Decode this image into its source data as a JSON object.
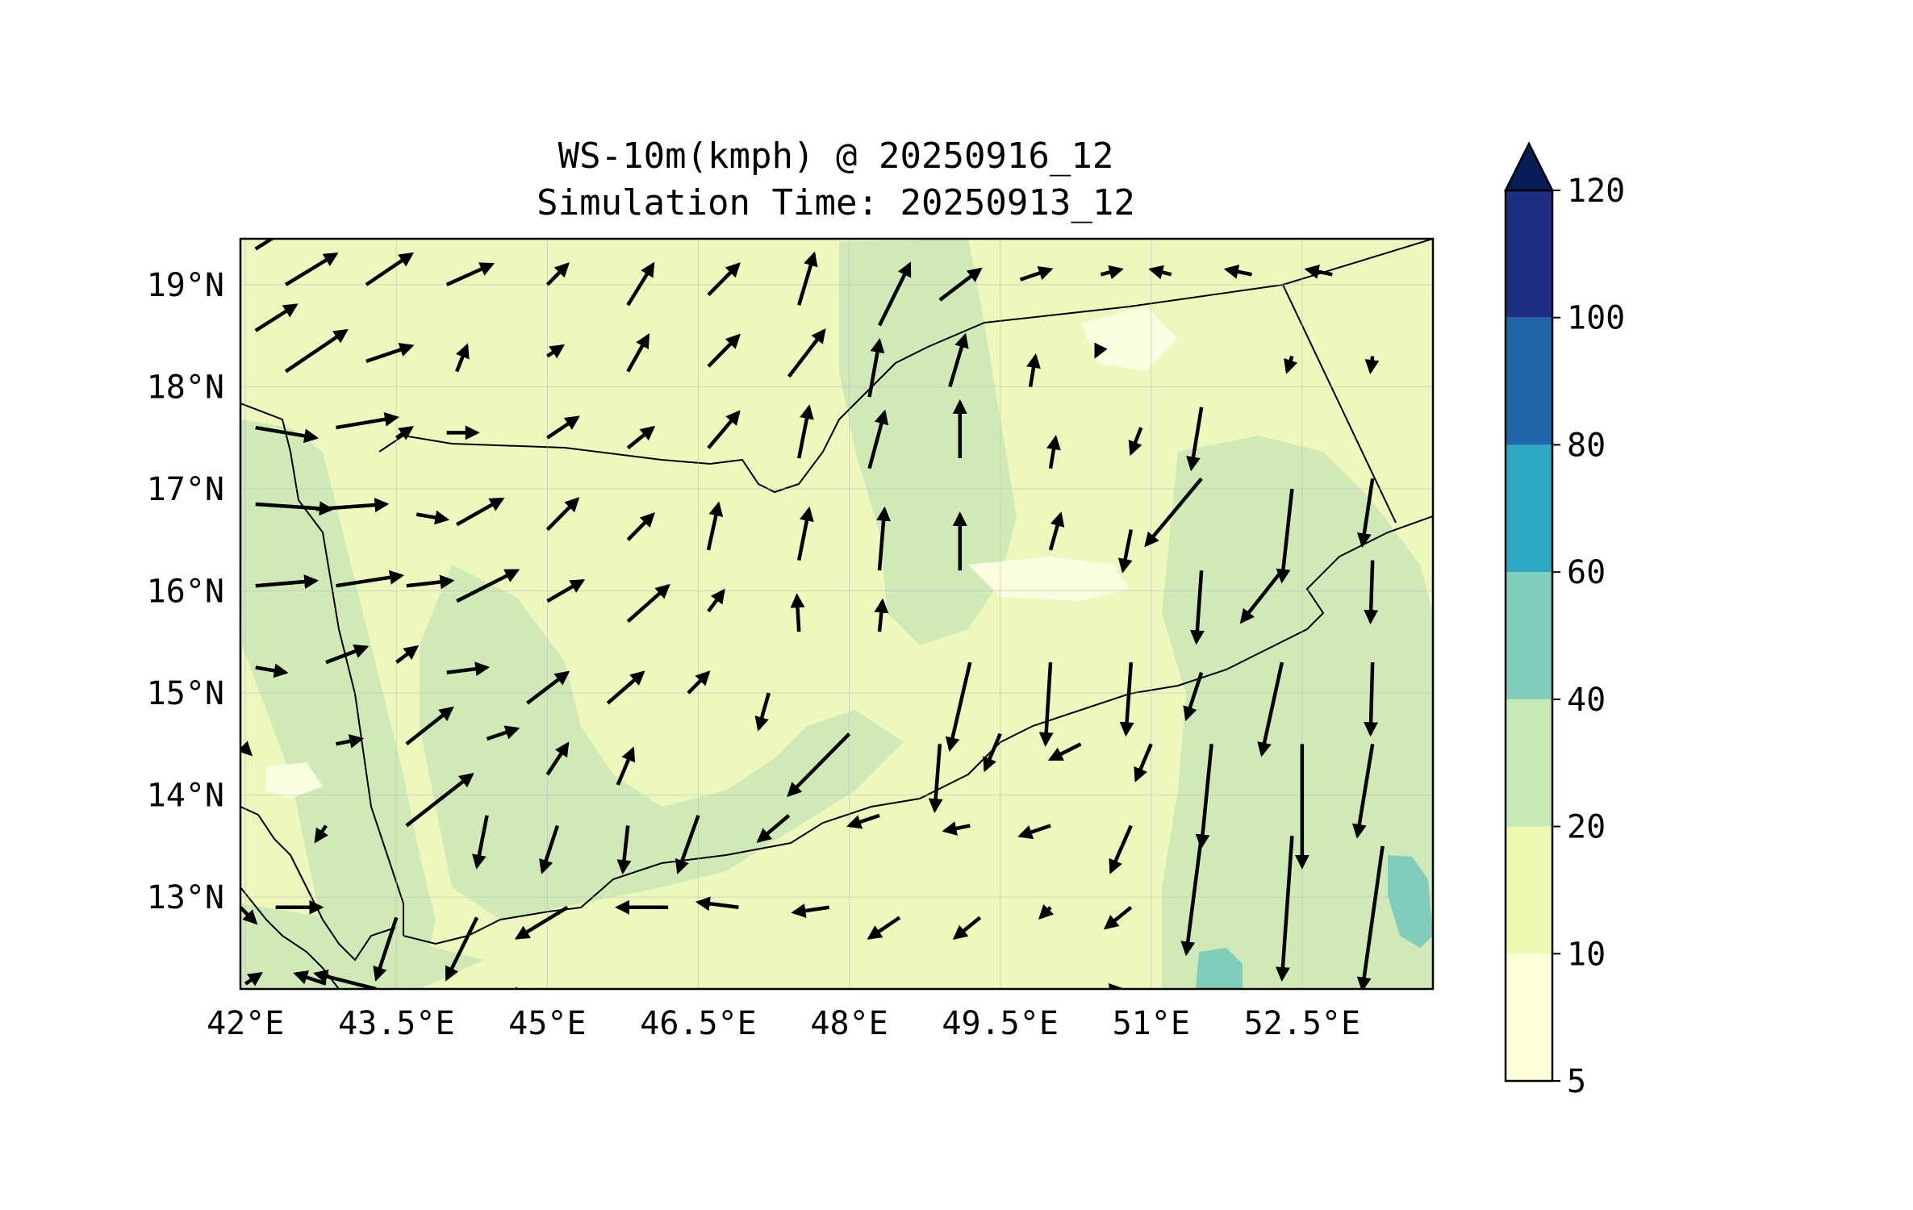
{
  "title": {
    "line1": "WS-10m(kmph) @ 20250916_12",
    "line2": "Simulation Time: 20250913_12"
  },
  "map": {
    "lon_range": [
      41.95,
      53.8
    ],
    "lat_range": [
      12.1,
      19.45
    ],
    "lon_ticks": [
      {
        "value": 42.0,
        "label": "42°E"
      },
      {
        "value": 43.5,
        "label": "43.5°E"
      },
      {
        "value": 45.0,
        "label": "45°E"
      },
      {
        "value": 46.5,
        "label": "46.5°E"
      },
      {
        "value": 48.0,
        "label": "48°E"
      },
      {
        "value": 49.5,
        "label": "49.5°E"
      },
      {
        "value": 51.0,
        "label": "51°E"
      },
      {
        "value": 52.5,
        "label": "52.5°E"
      }
    ],
    "lat_ticks": [
      {
        "value": 13,
        "label": "13°N"
      },
      {
        "value": 14,
        "label": "14°N"
      },
      {
        "value": 15,
        "label": "15°N"
      },
      {
        "value": 16,
        "label": "16°N"
      },
      {
        "value": 17,
        "label": "17°N"
      },
      {
        "value": 18,
        "label": "18°N"
      },
      {
        "value": 19,
        "label": "19°N"
      }
    ],
    "gridlines": true,
    "background_class": "10-20 kmph",
    "wind_vectors": [
      [
        42.1,
        19.35,
        0.4,
        0.25
      ],
      [
        42.4,
        19.0,
        0.5,
        0.3
      ],
      [
        43.2,
        19.0,
        0.45,
        0.3
      ],
      [
        44.0,
        19.0,
        0.45,
        0.2
      ],
      [
        45.0,
        19.0,
        0.2,
        0.2
      ],
      [
        45.8,
        18.8,
        0.25,
        0.4
      ],
      [
        46.6,
        18.9,
        0.3,
        0.3
      ],
      [
        47.5,
        18.8,
        0.15,
        0.5
      ],
      [
        48.3,
        18.6,
        0.3,
        0.6
      ],
      [
        48.9,
        18.85,
        0.4,
        0.3
      ],
      [
        49.7,
        19.05,
        0.3,
        0.1
      ],
      [
        50.5,
        19.1,
        0.2,
        0.05
      ],
      [
        51.2,
        19.1,
        -0.2,
        0.05
      ],
      [
        52.0,
        19.1,
        -0.25,
        0.05
      ],
      [
        52.8,
        19.1,
        -0.25,
        0.05
      ],
      [
        42.1,
        18.55,
        0.4,
        0.25
      ],
      [
        42.4,
        18.15,
        0.6,
        0.4
      ],
      [
        43.2,
        18.25,
        0.45,
        0.15
      ],
      [
        44.1,
        18.15,
        0.1,
        0.25
      ],
      [
        45.0,
        18.3,
        0.15,
        0.1
      ],
      [
        45.8,
        18.15,
        0.2,
        0.35
      ],
      [
        46.6,
        18.2,
        0.3,
        0.3
      ],
      [
        47.4,
        18.1,
        0.35,
        0.45
      ],
      [
        48.2,
        17.9,
        0.1,
        0.55
      ],
      [
        49.0,
        18.0,
        0.15,
        0.5
      ],
      [
        49.8,
        18.0,
        0.05,
        0.3
      ],
      [
        50.5,
        18.4,
        -0.05,
        -0.1
      ],
      [
        51.5,
        17.8,
        -0.1,
        -0.6
      ],
      [
        52.4,
        18.3,
        -0.05,
        -0.15
      ],
      [
        53.2,
        18.3,
        -0.02,
        -0.15
      ],
      [
        42.1,
        17.6,
        0.6,
        -0.1
      ],
      [
        42.9,
        17.6,
        0.6,
        0.1
      ],
      [
        43.5,
        17.5,
        0.15,
        0.1
      ],
      [
        44.0,
        17.55,
        0.3,
        0.0
      ],
      [
        45.0,
        17.5,
        0.3,
        0.2
      ],
      [
        45.8,
        17.4,
        0.25,
        0.2
      ],
      [
        46.6,
        17.4,
        0.3,
        0.35
      ],
      [
        47.5,
        17.3,
        0.1,
        0.5
      ],
      [
        48.2,
        17.2,
        0.15,
        0.55
      ],
      [
        49.1,
        17.3,
        0.0,
        0.55
      ],
      [
        50.0,
        17.2,
        0.05,
        0.3
      ],
      [
        50.9,
        17.6,
        -0.1,
        -0.25
      ],
      [
        51.5,
        17.1,
        -0.55,
        -0.65
      ],
      [
        52.4,
        17.0,
        -0.1,
        -0.9
      ],
      [
        53.2,
        17.1,
        -0.1,
        -0.65
      ],
      [
        42.1,
        16.85,
        0.75,
        -0.05
      ],
      [
        42.7,
        16.8,
        0.7,
        0.05
      ],
      [
        43.7,
        16.75,
        0.3,
        -0.05
      ],
      [
        44.1,
        16.65,
        0.45,
        0.25
      ],
      [
        45.0,
        16.6,
        0.3,
        0.3
      ],
      [
        45.8,
        16.5,
        0.25,
        0.25
      ],
      [
        46.6,
        16.4,
        0.1,
        0.45
      ],
      [
        47.5,
        16.3,
        0.1,
        0.5
      ],
      [
        48.3,
        16.2,
        0.05,
        0.6
      ],
      [
        49.1,
        16.2,
        0.0,
        0.55
      ],
      [
        50.0,
        16.4,
        0.1,
        0.35
      ],
      [
        50.8,
        16.6,
        -0.08,
        -0.4
      ],
      [
        51.5,
        16.2,
        -0.05,
        -0.7
      ],
      [
        52.3,
        16.2,
        -0.4,
        -0.5
      ],
      [
        53.2,
        16.3,
        -0.02,
        -0.6
      ],
      [
        42.1,
        16.05,
        0.6,
        0.05
      ],
      [
        42.9,
        16.05,
        0.65,
        0.1
      ],
      [
        43.6,
        16.05,
        0.45,
        0.05
      ],
      [
        44.1,
        15.9,
        0.6,
        0.3
      ],
      [
        45.0,
        15.9,
        0.35,
        0.2
      ],
      [
        45.8,
        15.7,
        0.4,
        0.35
      ],
      [
        46.6,
        15.8,
        0.15,
        0.2
      ],
      [
        47.5,
        15.6,
        -0.02,
        0.35
      ],
      [
        48.3,
        15.6,
        0.03,
        0.3
      ],
      [
        49.2,
        15.3,
        -0.2,
        -0.85
      ],
      [
        50.0,
        15.3,
        -0.05,
        -0.8
      ],
      [
        50.8,
        15.3,
        -0.05,
        -0.7
      ],
      [
        51.5,
        15.2,
        -0.15,
        -0.45
      ],
      [
        52.3,
        15.3,
        -0.2,
        -0.9
      ],
      [
        53.2,
        15.3,
        -0.02,
        -0.7
      ],
      [
        42.1,
        15.25,
        0.3,
        -0.05
      ],
      [
        42.8,
        15.3,
        0.4,
        0.15
      ],
      [
        43.5,
        15.3,
        0.2,
        0.15
      ],
      [
        44.0,
        15.2,
        0.4,
        0.05
      ],
      [
        44.8,
        14.9,
        0.4,
        0.3
      ],
      [
        45.6,
        14.9,
        0.35,
        0.3
      ],
      [
        46.4,
        15.0,
        0.2,
        0.2
      ],
      [
        47.2,
        15.0,
        -0.1,
        -0.35
      ],
      [
        48.0,
        14.6,
        -0.6,
        -0.6
      ],
      [
        48.9,
        14.5,
        -0.05,
        -0.65
      ],
      [
        49.5,
        14.6,
        -0.15,
        -0.35
      ],
      [
        50.3,
        14.5,
        -0.3,
        -0.15
      ],
      [
        51.0,
        14.5,
        -0.15,
        -0.35
      ],
      [
        51.6,
        14.5,
        -0.1,
        -1.0
      ],
      [
        52.5,
        14.5,
        0.0,
        -1.2
      ],
      [
        53.2,
        14.5,
        -0.15,
        -0.9
      ],
      [
        42.0,
        14.45,
        0.05,
        -0.05
      ],
      [
        42.9,
        14.5,
        0.25,
        0.05
      ],
      [
        43.6,
        14.5,
        0.45,
        0.35
      ],
      [
        44.4,
        14.55,
        0.3,
        0.1
      ],
      [
        45.0,
        14.2,
        0.2,
        0.3
      ],
      [
        45.7,
        14.1,
        0.15,
        0.35
      ],
      [
        46.5,
        13.8,
        -0.2,
        -0.55
      ],
      [
        47.4,
        13.8,
        -0.3,
        -0.25
      ],
      [
        48.3,
        13.8,
        -0.3,
        -0.1
      ],
      [
        49.2,
        13.7,
        -0.25,
        -0.05
      ],
      [
        50.0,
        13.7,
        -0.3,
        -0.1
      ],
      [
        50.8,
        13.7,
        -0.2,
        -0.45
      ],
      [
        51.5,
        13.6,
        -0.15,
        -1.15
      ],
      [
        52.4,
        13.6,
        -0.1,
        -1.4
      ],
      [
        53.3,
        13.5,
        -0.2,
        -1.4
      ],
      [
        42.8,
        13.7,
        -0.1,
        -0.15
      ],
      [
        43.6,
        13.7,
        0.65,
        0.5
      ],
      [
        44.4,
        13.8,
        -0.1,
        -0.5
      ],
      [
        45.1,
        13.7,
        -0.15,
        -0.45
      ],
      [
        45.8,
        13.7,
        -0.05,
        -0.45
      ],
      [
        43.5,
        12.8,
        -0.2,
        -0.6
      ],
      [
        44.3,
        12.8,
        -0.3,
        -0.6
      ],
      [
        45.2,
        12.9,
        -0.5,
        -0.3
      ],
      [
        46.2,
        12.9,
        -0.5,
        0.0
      ],
      [
        46.9,
        12.9,
        -0.4,
        0.05
      ],
      [
        47.8,
        12.9,
        -0.35,
        -0.05
      ],
      [
        48.5,
        12.8,
        -0.3,
        -0.2
      ],
      [
        49.3,
        12.8,
        -0.25,
        -0.2
      ],
      [
        50.0,
        12.9,
        -0.1,
        -0.1
      ],
      [
        50.8,
        12.9,
        -0.25,
        -0.2
      ],
      [
        51.6,
        12.1,
        -0.1,
        -1.1
      ],
      [
        52.5,
        12.1,
        -0.1,
        -1.15
      ],
      [
        53.2,
        12.1,
        0.0,
        -1.1
      ],
      [
        42.3,
        12.9,
        0.45,
        0.0
      ],
      [
        41.95,
        12.9,
        0.15,
        -0.15
      ],
      [
        42.0,
        12.15,
        0.15,
        0.1
      ],
      [
        42.8,
        12.15,
        -0.3,
        0.1
      ],
      [
        43.3,
        12.1,
        -0.6,
        0.15
      ],
      [
        44.2,
        12.05,
        0.6,
        0.0
      ],
      [
        50.3,
        12.05,
        0.4,
        0.05
      ]
    ]
  },
  "colorbar": {
    "levels": [
      5,
      10,
      20,
      40,
      60,
      80,
      100,
      120
    ],
    "tick_labels": [
      "5",
      "10",
      "20",
      "40",
      "60",
      "80",
      "100",
      "120"
    ],
    "colors": [
      "#ffffd9",
      "#edf8b1",
      "#c7e9b4",
      "#7fcdbb",
      "#2ea9c3",
      "#2266aa",
      "#1f2e82",
      "#081d58"
    ],
    "extend": "max"
  }
}
